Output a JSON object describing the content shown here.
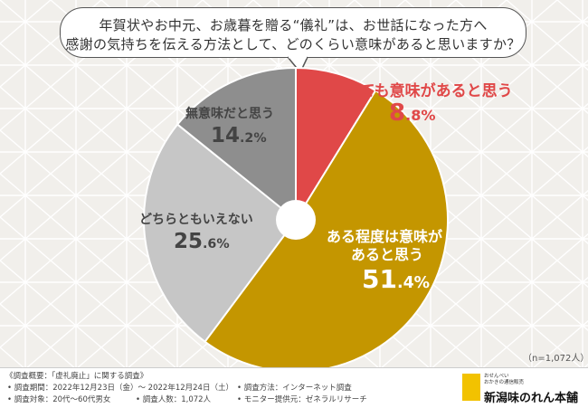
{
  "question": {
    "line1": "年賀状やお中元、お歳暮を贈る“儀礼”は、お世話になった方へ",
    "line2": "感謝の気持ちを伝える方法として、どのくらい意味があると思いますか？"
  },
  "chart_data": {
    "type": "pie",
    "donut": true,
    "start": "top",
    "direction": "clockwise",
    "slices": [
      {
        "label": "とても意味があると思う",
        "value": 8.8,
        "display_int": "8",
        "display_dec": ".8%",
        "color": "#e04848"
      },
      {
        "label_lines": [
          "ある程度は意味が",
          "あると思う"
        ],
        "value": 51.4,
        "display_int": "51",
        "display_dec": ".4%",
        "color": "#c49600"
      },
      {
        "label": "どちらともいえない",
        "value": 25.6,
        "display_int": "25",
        "display_dec": ".6%",
        "color": "#c6c6c6"
      },
      {
        "label": "無意味だと思う",
        "value": 14.2,
        "display_int": "14",
        "display_dec": ".2%",
        "color": "#8e8e8e"
      }
    ],
    "note": "（n=1,072人）"
  },
  "footer": {
    "title": "《調査概要：「虚礼廃止」に関する調査》",
    "period": "• 調査期間：2022年12月23日（金）～ 2022年12月24日（土）",
    "method": "• 調査方法：インターネット調査",
    "target": "• 調査対象：20代～60代男女",
    "count": "• 調査人数：1,072人",
    "provider": "• モニター提供元：ゼネラルリサーチ"
  },
  "logo": {
    "tag1": "おせんべい",
    "tag2": "おかきの通信販売",
    "name": "新潟味のれん本舗"
  }
}
